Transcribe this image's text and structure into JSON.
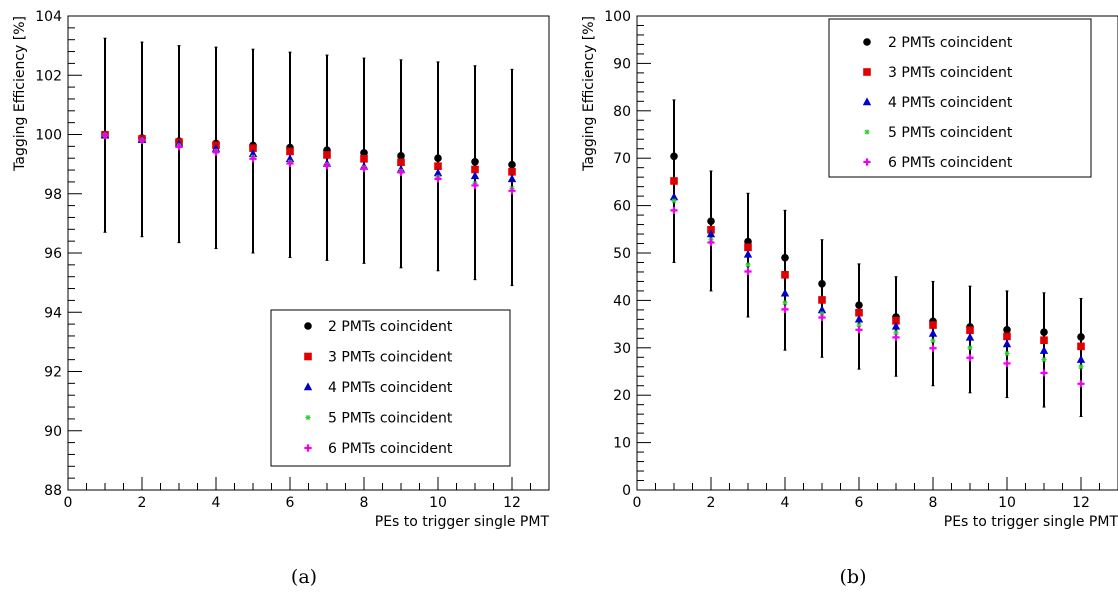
{
  "chart_data": [
    {
      "panel": "(a)",
      "type": "scatter",
      "xlabel": "PEs to trigger single PMT",
      "ylabel": "Tagging Efficiency [%]",
      "xlim": [
        0,
        13
      ],
      "ylim": [
        88,
        104
      ],
      "xticks": [
        0,
        2,
        4,
        6,
        8,
        10,
        12
      ],
      "yticks": [
        88,
        90,
        92,
        94,
        96,
        98,
        100,
        102,
        104
      ],
      "grid": false,
      "legend_position": "bottom-right",
      "x": [
        1,
        2,
        3,
        4,
        5,
        6,
        7,
        8,
        9,
        10,
        11,
        12
      ],
      "series": [
        {
          "name": "2 PMTs coincident",
          "color": "#000000",
          "marker": "circle",
          "values": [
            100.0,
            99.88,
            99.78,
            99.7,
            99.63,
            99.56,
            99.47,
            99.38,
            99.28,
            99.2,
            99.08,
            98.98
          ],
          "err_low": [
            96.7,
            96.55,
            96.35,
            96.15,
            96.0,
            95.85,
            95.75,
            95.65,
            95.5,
            95.4,
            95.1,
            94.9
          ],
          "err_high": [
            103.25,
            103.12,
            103.0,
            102.95,
            102.88,
            102.78,
            102.68,
            102.58,
            102.52,
            102.45,
            102.32,
            102.2
          ]
        },
        {
          "name": "3 PMTs coincident",
          "color": "#e00000",
          "marker": "square",
          "values": [
            99.99,
            99.85,
            99.74,
            99.64,
            99.54,
            99.43,
            99.31,
            99.18,
            99.06,
            98.93,
            98.82,
            98.74
          ]
        },
        {
          "name": "4 PMTs coincident",
          "color": "#0000cc",
          "marker": "triangle",
          "values": [
            99.98,
            99.82,
            99.68,
            99.52,
            99.35,
            99.18,
            99.02,
            98.92,
            98.82,
            98.7,
            98.6,
            98.5
          ]
        },
        {
          "name": "5 PMTs coincident",
          "color": "#33cc33",
          "marker": "asterisk",
          "values": [
            99.97,
            99.8,
            99.62,
            99.44,
            99.24,
            99.07,
            98.97,
            98.87,
            98.76,
            98.56,
            98.35,
            98.18
          ]
        },
        {
          "name": "6 PMTs coincident",
          "color": "#ee00ee",
          "marker": "plus",
          "values": [
            99.97,
            99.8,
            99.58,
            99.4,
            99.18,
            99.02,
            98.95,
            98.85,
            98.72,
            98.5,
            98.28,
            98.1
          ]
        }
      ]
    },
    {
      "panel": "(b)",
      "type": "scatter",
      "xlabel": "PEs to trigger single PMT",
      "ylabel": "Tagging Efficiency [%]",
      "xlim": [
        0,
        13
      ],
      "ylim": [
        0,
        100
      ],
      "xticks": [
        0,
        2,
        4,
        6,
        8,
        10,
        12
      ],
      "yticks": [
        0,
        10,
        20,
        30,
        40,
        50,
        60,
        70,
        80,
        90,
        100
      ],
      "grid": false,
      "legend_position": "top-right",
      "x": [
        1,
        2,
        3,
        4,
        5,
        6,
        7,
        8,
        9,
        10,
        11,
        12
      ],
      "series": [
        {
          "name": "2 PMTs coincident",
          "color": "#000000",
          "marker": "circle",
          "values": [
            70.4,
            56.7,
            52.4,
            49.0,
            43.5,
            39.0,
            36.5,
            35.6,
            34.4,
            33.8,
            33.3,
            32.3
          ],
          "err_low": [
            48.0,
            42.0,
            36.5,
            29.5,
            28.0,
            25.5,
            24.0,
            22.0,
            20.5,
            19.5,
            17.5,
            15.5
          ],
          "err_high": [
            82.3,
            67.3,
            62.6,
            59.0,
            52.8,
            47.7,
            45.0,
            44.0,
            43.0,
            42.0,
            41.6,
            40.4
          ]
        },
        {
          "name": "3 PMTs coincident",
          "color": "#e00000",
          "marker": "square",
          "values": [
            65.2,
            54.9,
            51.2,
            45.4,
            40.1,
            37.4,
            35.7,
            34.8,
            33.7,
            32.4,
            31.6,
            30.3
          ]
        },
        {
          "name": "4 PMTs coincident",
          "color": "#0000cc",
          "marker": "triangle",
          "values": [
            61.8,
            54.0,
            49.7,
            41.5,
            38.0,
            36.0,
            34.5,
            33.0,
            32.2,
            30.8,
            29.4,
            27.5
          ]
        },
        {
          "name": "5 PMTs coincident",
          "color": "#33cc33",
          "marker": "asterisk",
          "values": [
            61.0,
            52.8,
            47.5,
            39.5,
            37.2,
            34.8,
            33.2,
            31.5,
            30.0,
            28.8,
            27.5,
            26.0
          ]
        },
        {
          "name": "6 PMTs coincident",
          "color": "#ee00ee",
          "marker": "plus",
          "values": [
            59.0,
            52.2,
            46.1,
            38.1,
            36.4,
            33.8,
            32.2,
            29.9,
            27.9,
            26.7,
            24.7,
            22.4
          ]
        }
      ]
    }
  ]
}
